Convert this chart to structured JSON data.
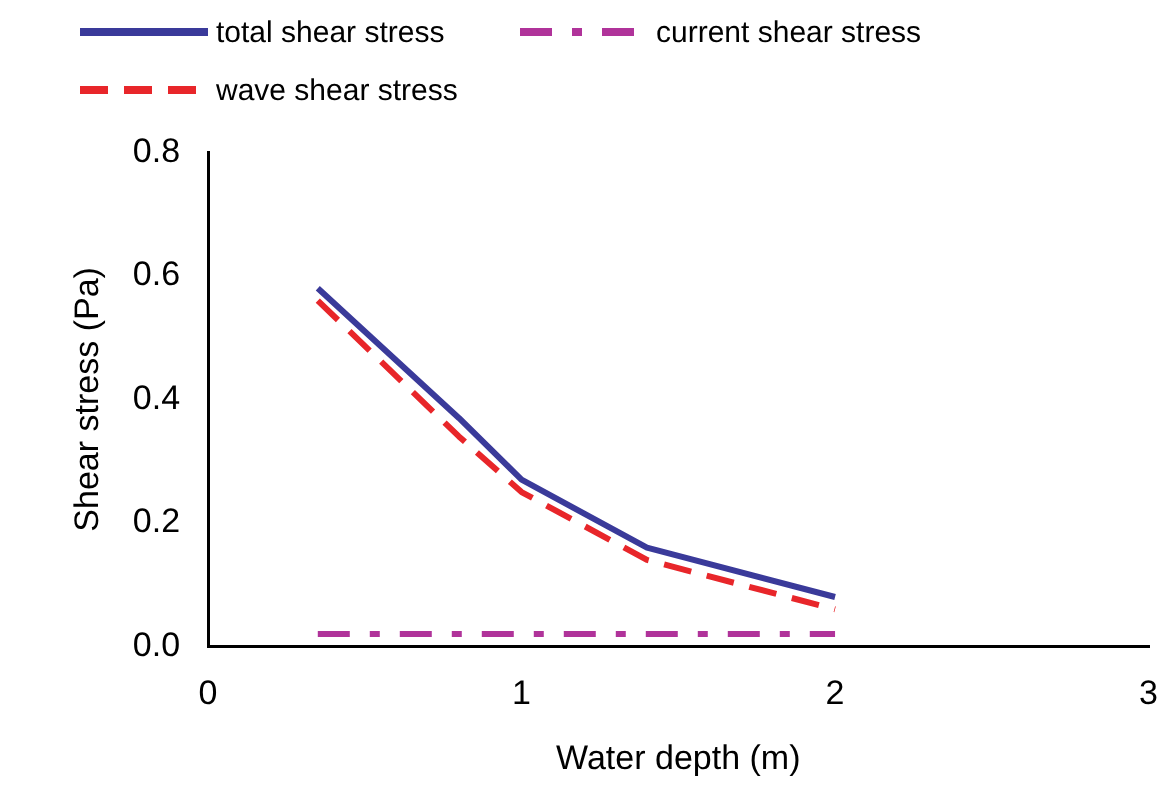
{
  "chart_data": {
    "type": "line",
    "xlabel": "Water depth (m)",
    "ylabel": "Shear stress (Pa)",
    "xlim": [
      0,
      3
    ],
    "xticks": [
      0,
      1,
      2,
      3
    ],
    "ylim": [
      0,
      0.8
    ],
    "yticks": [
      {
        "value": 0,
        "label": "0.0"
      },
      {
        "value": 0.2,
        "label": "0.2"
      },
      {
        "value": 0.4,
        "label": "0.4"
      },
      {
        "value": 0.6,
        "label": "0.6"
      },
      {
        "value": 0.8,
        "label": "0.8"
      }
    ],
    "x": [
      0.35,
      0.8,
      1.0,
      1.4,
      2.0
    ],
    "series": [
      {
        "name": "total shear stress",
        "color": "#3a3a9a",
        "line_style": "solid",
        "values": [
          0.58,
          0.37,
          0.27,
          0.16,
          0.08
        ]
      },
      {
        "name": "current shear stress",
        "color": "#b0339a",
        "line_style": "dashdot",
        "values": [
          0.02,
          0.02,
          0.02,
          0.02,
          0.02
        ]
      },
      {
        "name": "wave shear stress",
        "color": "#e8262a",
        "line_style": "dashed",
        "values": [
          0.56,
          0.34,
          0.25,
          0.14,
          0.06
        ]
      }
    ],
    "grid": false,
    "legend": "top left",
    "marker": "none"
  }
}
